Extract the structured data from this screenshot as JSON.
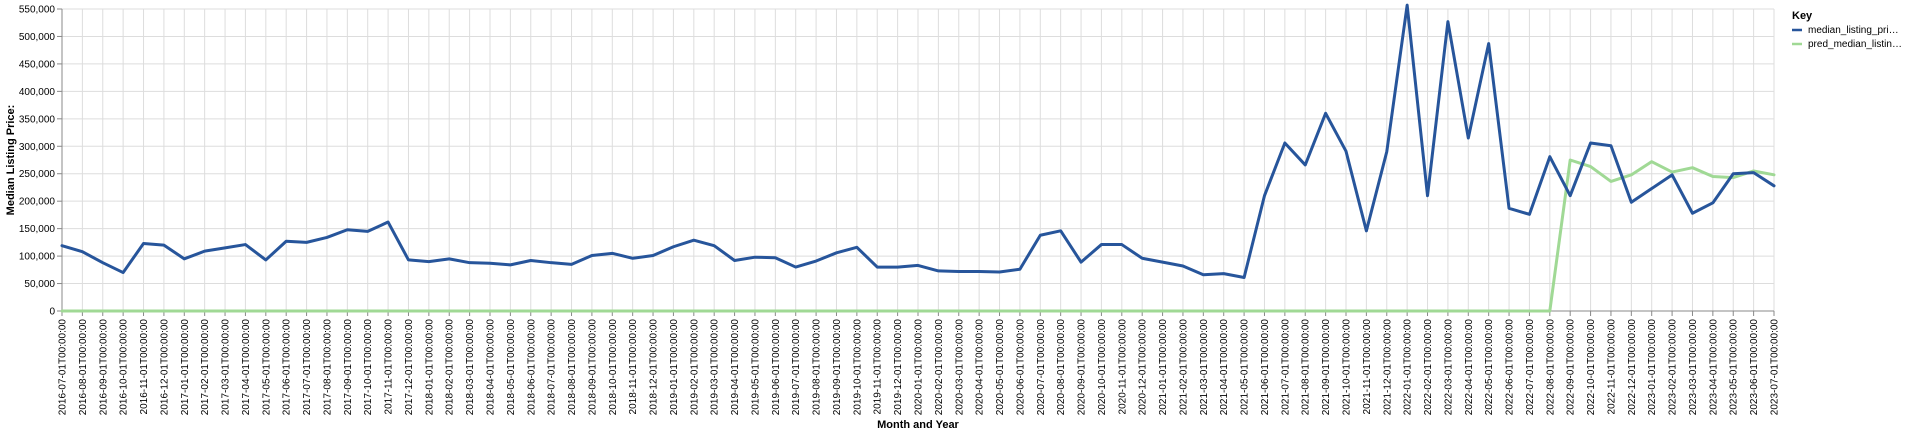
{
  "chart_data": {
    "type": "line",
    "xlabel": "Month and Year",
    "ylabel": "Median Listing Price:",
    "ylim": [
      0,
      550000
    ],
    "yticks": [
      0,
      50000,
      100000,
      150000,
      200000,
      250000,
      300000,
      350000,
      400000,
      450000,
      500000,
      550000
    ],
    "ytick_labels": [
      "0",
      "50,000",
      "100,000",
      "150,000",
      "200,000",
      "250,000",
      "300,000",
      "350,000",
      "400,000",
      "450,000",
      "500,000",
      "550,000"
    ],
    "grid": true,
    "legend_title": "Key",
    "legend_position": "top-right",
    "x": [
      "2016-07-01T00:00:00",
      "2016-08-01T00:00:00",
      "2016-09-01T00:00:00",
      "2016-10-01T00:00:00",
      "2016-11-01T00:00:00",
      "2016-12-01T00:00:00",
      "2017-01-01T00:00:00",
      "2017-02-01T00:00:00",
      "2017-03-01T00:00:00",
      "2017-04-01T00:00:00",
      "2017-05-01T00:00:00",
      "2017-06-01T00:00:00",
      "2017-07-01T00:00:00",
      "2017-08-01T00:00:00",
      "2017-09-01T00:00:00",
      "2017-10-01T00:00:00",
      "2017-11-01T00:00:00",
      "2017-12-01T00:00:00",
      "2018-01-01T00:00:00",
      "2018-02-01T00:00:00",
      "2018-03-01T00:00:00",
      "2018-04-01T00:00:00",
      "2018-05-01T00:00:00",
      "2018-06-01T00:00:00",
      "2018-07-01T00:00:00",
      "2018-08-01T00:00:00",
      "2018-09-01T00:00:00",
      "2018-10-01T00:00:00",
      "2018-11-01T00:00:00",
      "2018-12-01T00:00:00",
      "2019-01-01T00:00:00",
      "2019-02-01T00:00:00",
      "2019-03-01T00:00:00",
      "2019-04-01T00:00:00",
      "2019-05-01T00:00:00",
      "2019-06-01T00:00:00",
      "2019-07-01T00:00:00",
      "2019-08-01T00:00:00",
      "2019-09-01T00:00:00",
      "2019-10-01T00:00:00",
      "2019-11-01T00:00:00",
      "2019-12-01T00:00:00",
      "2020-01-01T00:00:00",
      "2020-02-01T00:00:00",
      "2020-03-01T00:00:00",
      "2020-04-01T00:00:00",
      "2020-05-01T00:00:00",
      "2020-06-01T00:00:00",
      "2020-07-01T00:00:00",
      "2020-08-01T00:00:00",
      "2020-09-01T00:00:00",
      "2020-10-01T00:00:00",
      "2020-11-01T00:00:00",
      "2020-12-01T00:00:00",
      "2021-01-01T00:00:00",
      "2021-02-01T00:00:00",
      "2021-03-01T00:00:00",
      "2021-04-01T00:00:00",
      "2021-05-01T00:00:00",
      "2021-06-01T00:00:00",
      "2021-07-01T00:00:00",
      "2021-08-01T00:00:00",
      "2021-09-01T00:00:00",
      "2021-10-01T00:00:00",
      "2021-11-01T00:00:00",
      "2021-12-01T00:00:00",
      "2022-01-01T00:00:00",
      "2022-02-01T00:00:00",
      "2022-03-01T00:00:00",
      "2022-04-01T00:00:00",
      "2022-05-01T00:00:00",
      "2022-06-01T00:00:00",
      "2022-07-01T00:00:00",
      "2022-08-01T00:00:00",
      "2022-09-01T00:00:00",
      "2022-10-01T00:00:00",
      "2022-11-01T00:00:00",
      "2022-12-01T00:00:00",
      "2023-01-01T00:00:00",
      "2023-02-01T00:00:00",
      "2023-03-01T00:00:00",
      "2023-04-01T00:00:00",
      "2023-05-01T00:00:00",
      "2023-06-01T00:00:00",
      "2023-07-01T00:00:00"
    ],
    "series": [
      {
        "name": "median_listing_pri…",
        "color": "#27559b",
        "values": [
          119000,
          108000,
          88000,
          70000,
          123000,
          120000,
          95000,
          109000,
          115000,
          121000,
          93000,
          127000,
          125000,
          134000,
          148000,
          145000,
          162000,
          93000,
          90000,
          95000,
          88000,
          87000,
          84000,
          92000,
          88000,
          85000,
          101000,
          105000,
          96000,
          101000,
          117000,
          129000,
          119000,
          92000,
          98000,
          97000,
          80000,
          91000,
          106000,
          116000,
          80000,
          80000,
          83000,
          73000,
          72000,
          72000,
          71000,
          76000,
          138000,
          146000,
          89000,
          121000,
          121000,
          96000,
          89000,
          82000,
          66000,
          68000,
          61000,
          210000,
          306000,
          266000,
          360000,
          291000,
          146000,
          290000,
          557000,
          210000,
          527000,
          315000,
          487000,
          187000,
          176000,
          281000,
          210000,
          306000,
          301000,
          198000,
          223000,
          248000,
          178000,
          197000,
          250000,
          252000,
          228000
        ]
      },
      {
        "name": "pred_median_listin…",
        "color": "#a0d995",
        "values": [
          0,
          0,
          0,
          0,
          0,
          0,
          0,
          0,
          0,
          0,
          0,
          0,
          0,
          0,
          0,
          0,
          0,
          0,
          0,
          0,
          0,
          0,
          0,
          0,
          0,
          0,
          0,
          0,
          0,
          0,
          0,
          0,
          0,
          0,
          0,
          0,
          0,
          0,
          0,
          0,
          0,
          0,
          0,
          0,
          0,
          0,
          0,
          0,
          0,
          0,
          0,
          0,
          0,
          0,
          0,
          0,
          0,
          0,
          0,
          0,
          0,
          0,
          0,
          0,
          0,
          0,
          0,
          0,
          0,
          0,
          0,
          0,
          0,
          0,
          275000,
          263000,
          236000,
          248000,
          272000,
          253000,
          261000,
          245000,
          243000,
          255000,
          248000
        ]
      }
    ]
  }
}
